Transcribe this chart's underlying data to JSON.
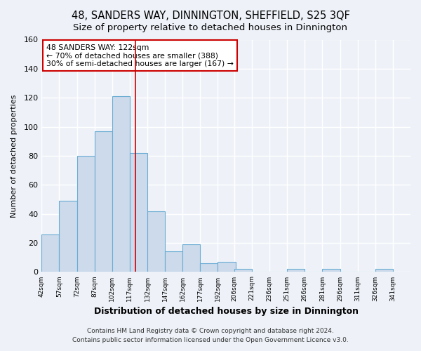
{
  "title": "48, SANDERS WAY, DINNINGTON, SHEFFIELD, S25 3QF",
  "subtitle": "Size of property relative to detached houses in Dinnington",
  "xlabel": "Distribution of detached houses by size in Dinnington",
  "ylabel": "Number of detached properties",
  "bin_labels": [
    "42sqm",
    "57sqm",
    "72sqm",
    "87sqm",
    "102sqm",
    "117sqm",
    "132sqm",
    "147sqm",
    "162sqm",
    "177sqm",
    "192sqm",
    "206sqm",
    "221sqm",
    "236sqm",
    "251sqm",
    "266sqm",
    "281sqm",
    "296sqm",
    "311sqm",
    "326sqm",
    "341sqm"
  ],
  "bin_edges": [
    42,
    57,
    72,
    87,
    102,
    117,
    132,
    147,
    162,
    177,
    192,
    206,
    221,
    236,
    251,
    266,
    281,
    296,
    311,
    326,
    341
  ],
  "counts": [
    26,
    49,
    80,
    97,
    121,
    82,
    42,
    14,
    19,
    6,
    7,
    2,
    0,
    0,
    2,
    0,
    2,
    0,
    0,
    2
  ],
  "bar_color": "#ccdaeb",
  "bar_edge_color": "#6aacd4",
  "property_size": 122,
  "vline_color": "#cc0000",
  "annotation_text": "48 SANDERS WAY: 122sqm\n← 70% of detached houses are smaller (388)\n30% of semi-detached houses are larger (167) →",
  "annotation_box_color": "#ffffff",
  "annotation_box_edge": "#cc0000",
  "footer1": "Contains HM Land Registry data © Crown copyright and database right 2024.",
  "footer2": "Contains public sector information licensed under the Open Government Licence v3.0.",
  "background_color": "#eef2f8",
  "ylim": [
    0,
    160
  ],
  "title_fontsize": 10.5,
  "subtitle_fontsize": 9.5,
  "grid_color": "#ffffff"
}
